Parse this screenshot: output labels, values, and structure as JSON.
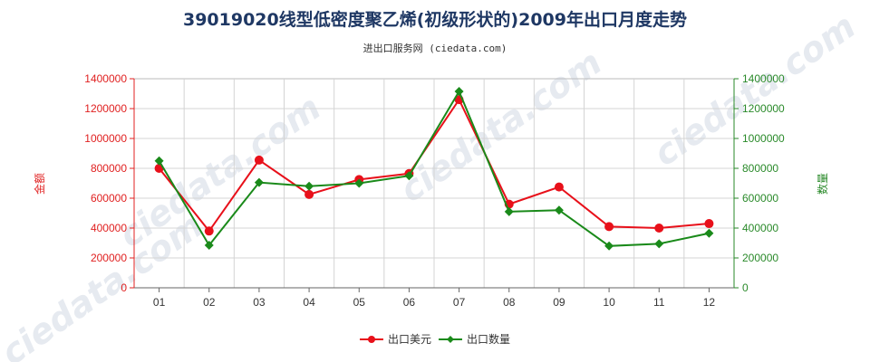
{
  "chart_data": {
    "type": "line",
    "title": "39019020线型低密度聚乙烯(初级形状的)2009年出口月度走势",
    "subtitle": "进出口服务网 (ciedata.com)",
    "categories": [
      "01",
      "02",
      "03",
      "04",
      "05",
      "06",
      "07",
      "08",
      "09",
      "10",
      "11",
      "12"
    ],
    "left_axis": {
      "label": "金额",
      "color": "#e02020",
      "ylim": [
        0,
        1400000
      ],
      "ticks": [
        "0",
        "200000",
        "400000",
        "600000",
        "800000",
        "1000000",
        "1200000",
        "1400000"
      ]
    },
    "right_axis": {
      "label": "数量",
      "color": "#2a8a2a",
      "ylim": [
        0,
        1400000
      ],
      "ticks": [
        "0",
        "200000",
        "400000",
        "600000",
        "800000",
        "1000000",
        "1200000",
        "1400000"
      ]
    },
    "series": [
      {
        "name": "出口美元",
        "axis": "left",
        "color": "#e8101a",
        "values": [
          800000,
          380000,
          855000,
          625000,
          725000,
          765000,
          1260000,
          560000,
          675000,
          410000,
          400000,
          430000
        ]
      },
      {
        "name": "出口数量",
        "axis": "right",
        "color": "#1a8a1a",
        "values": [
          850000,
          285000,
          705000,
          680000,
          700000,
          750000,
          1315000,
          510000,
          520000,
          280000,
          295000,
          365000
        ]
      }
    ],
    "grid": true,
    "legend_position": "bottom-center"
  }
}
